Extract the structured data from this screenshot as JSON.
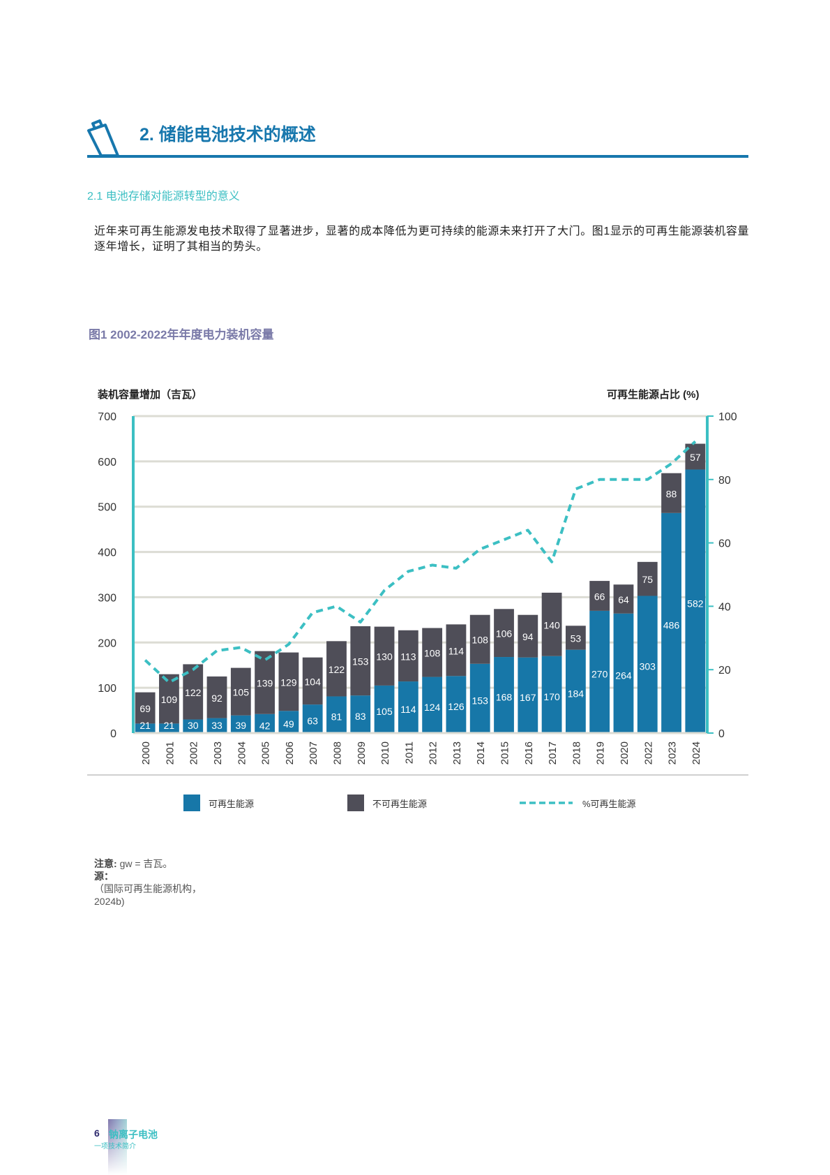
{
  "section": {
    "title": "2. 储能电池技术的概述",
    "icon": "battery-icon"
  },
  "subsection": {
    "title": "2.1 电池存储对能源转型的意义"
  },
  "paragraph": "近年来可再生能源发电技术取得了显著进步，显著的成本降低为更可持续的能源未来打开了大门。图1显示的可再生能源装机容量逐年增长，证明了其相当的势头。",
  "figure": {
    "title": "图1 2002-2022年年度电力装机容量"
  },
  "colors": {
    "renewable": "#1777a8",
    "non_renewable": "#4f4e58",
    "share_line": "#3cbfc3",
    "axis": "#3cbfc3",
    "grid": "#dcdcd4",
    "heading": "#1777ad"
  },
  "chart_data": {
    "type": "bar",
    "stacked": true,
    "ylabel": "装机容量增加（吉瓦）",
    "y2label": "可再生能源占比 (%)",
    "ylim": [
      0,
      700
    ],
    "y2lim": [
      0,
      100
    ],
    "yticks": [
      "0",
      "100",
      "200",
      "300",
      "400",
      "500",
      "600",
      "700"
    ],
    "y2ticks": [
      "0",
      "20",
      "40",
      "60",
      "80",
      "100"
    ],
    "grid": true,
    "legend_position": "bottom",
    "categories": [
      "2000",
      "2001",
      "2002",
      "2003",
      "2004",
      "2005",
      "2006",
      "2007",
      "2008",
      "2009",
      "2010",
      "2011",
      "2012",
      "2013",
      "2014",
      "2015",
      "2016",
      "2017",
      "2018",
      "2019",
      "2020",
      "2022",
      "2023",
      "2024"
    ],
    "series": [
      {
        "name": "可再生能源",
        "type": "bar",
        "values": [
          21,
          21,
          30,
          33,
          39,
          42,
          49,
          63,
          81,
          83,
          105,
          114,
          124,
          126,
          153,
          168,
          167,
          170,
          184,
          270,
          264,
          303,
          486,
          582
        ]
      },
      {
        "name": "不可再生能源",
        "type": "bar",
        "values": [
          69,
          109,
          122,
          92,
          105,
          139,
          129,
          104,
          122,
          153,
          130,
          113,
          108,
          114,
          108,
          106,
          94,
          140,
          53,
          66,
          64,
          75,
          88,
          57
        ]
      },
      {
        "name": "%可再生能源",
        "type": "line",
        "axis": "right",
        "values": [
          23,
          16,
          20,
          26,
          27,
          23,
          28,
          38,
          40,
          35,
          45,
          51,
          53,
          52,
          58,
          61,
          64,
          54,
          77,
          80,
          80,
          80,
          85,
          92
        ]
      }
    ]
  },
  "notes": {
    "note_label": "注意:",
    "note_text": "gw = 吉瓦。",
    "source_label": "源：",
    "source_text": "（国际可再生能源机构，2024b)"
  },
  "footer": {
    "page": "6",
    "brand": "钠离子电池",
    "subtitle": "一项技术简介"
  }
}
